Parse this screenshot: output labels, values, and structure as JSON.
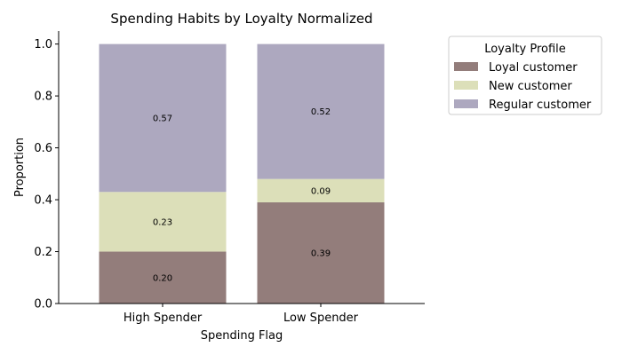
{
  "chart_data": {
    "type": "bar",
    "stacked": true,
    "title": "Spending Habits by Loyalty Normalized",
    "xlabel": "Spending Flag",
    "ylabel": "Proportion",
    "categories": [
      "High Spender",
      "Low Spender"
    ],
    "ylim": [
      0,
      1.05
    ],
    "yticks": [
      0.0,
      0.2,
      0.4,
      0.6,
      0.8,
      1.0
    ],
    "ytick_labels": [
      "0.0",
      "0.2",
      "0.4",
      "0.6",
      "0.8",
      "1.0"
    ],
    "legend": {
      "title": "Loyalty Profile",
      "placement": "outside-top-right"
    },
    "grid": false,
    "series": [
      {
        "name": "Loyal customer",
        "values": [
          0.2,
          0.39
        ],
        "labels": [
          "0.20",
          "0.39"
        ],
        "color": "#937d7b"
      },
      {
        "name": "New customer",
        "values": [
          0.23,
          0.09
        ],
        "labels": [
          "0.23",
          "0.09"
        ],
        "color": "#dcdfb9"
      },
      {
        "name": "Regular customer",
        "values": [
          0.57,
          0.52
        ],
        "labels": [
          "0.57",
          "0.52"
        ],
        "color": "#ada8bf"
      }
    ]
  }
}
